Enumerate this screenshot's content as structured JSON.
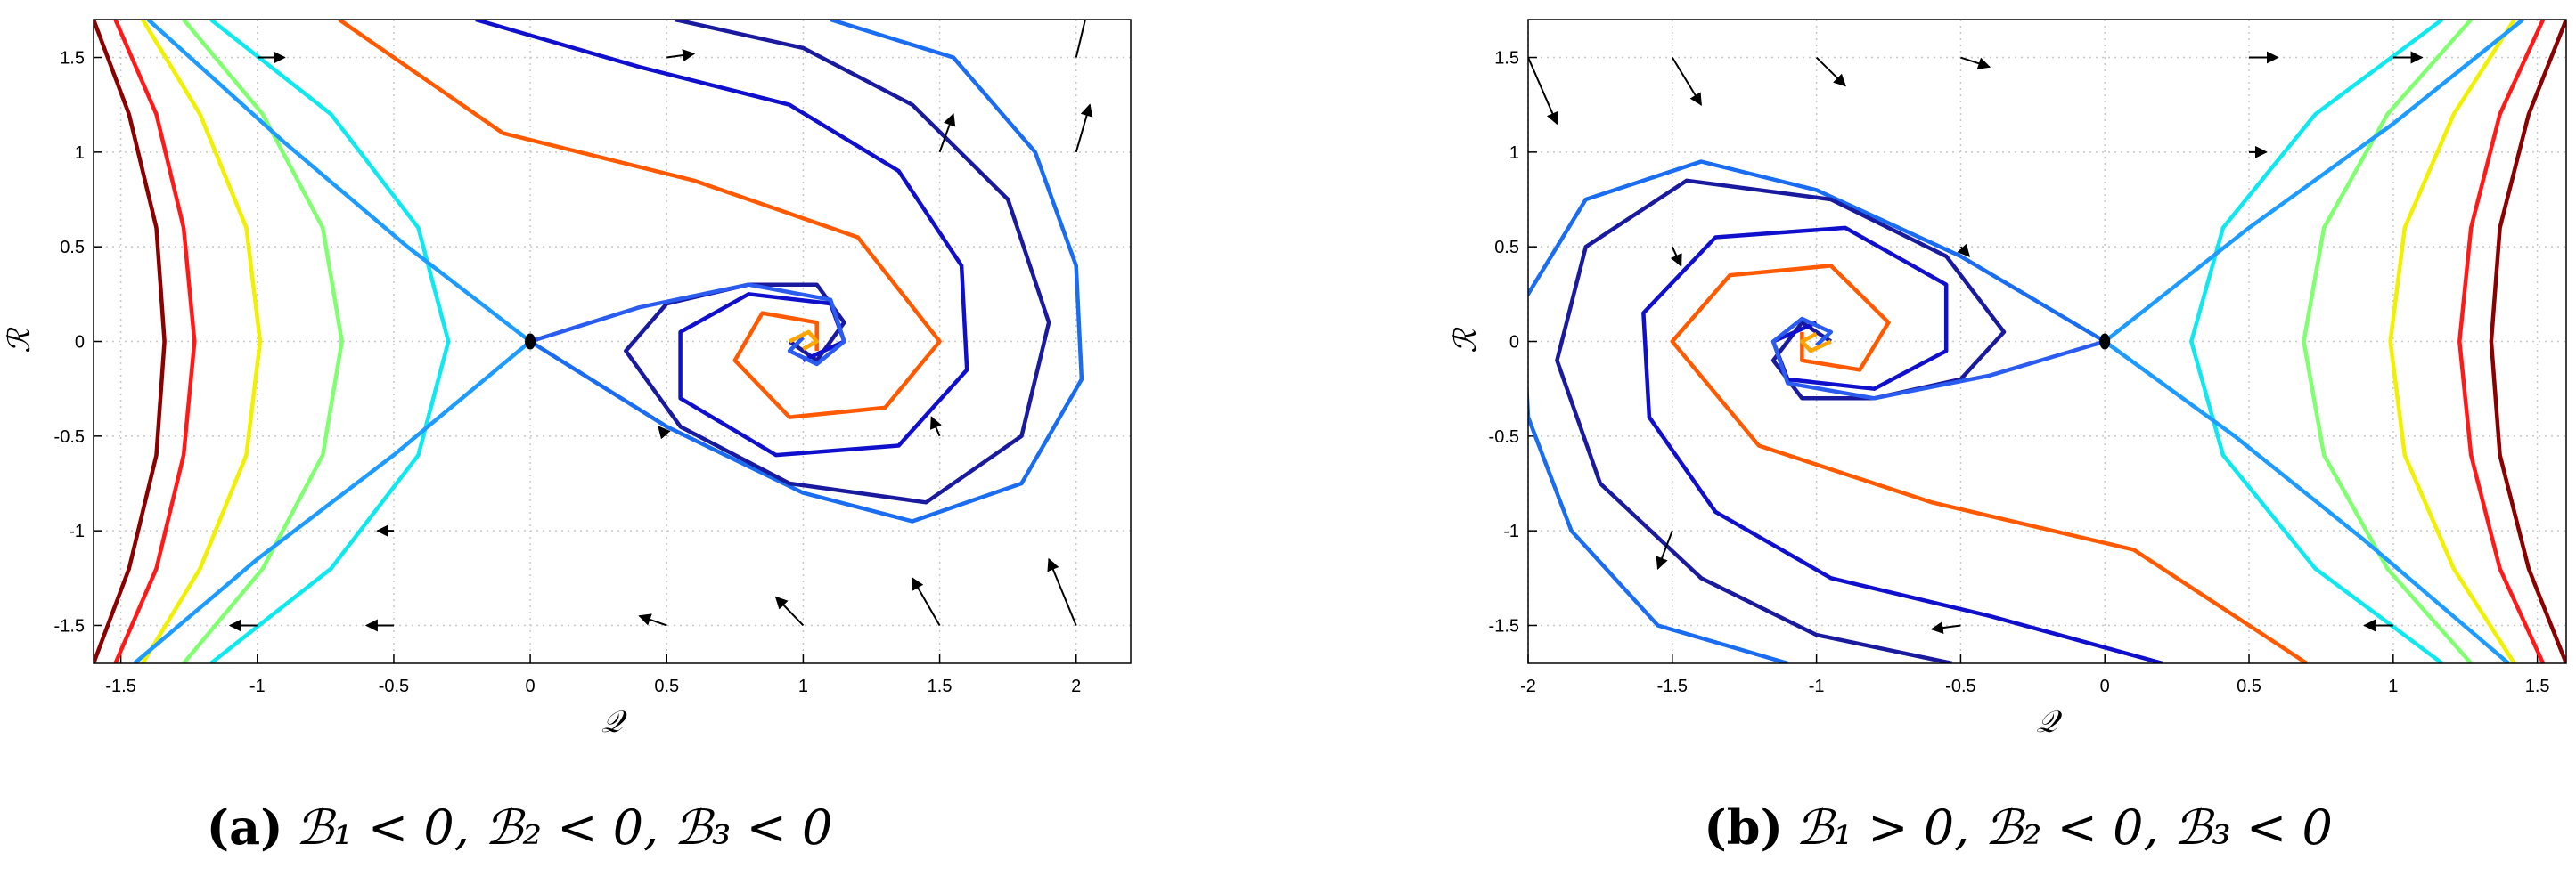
{
  "chart_data": [
    {
      "type": "line",
      "caption_label": "(a)",
      "caption": "ℬ₁ < 0, ℬ₂ < 0, ℬ₃ < 0",
      "xlabel": "𝒬",
      "ylabel": "ℛ",
      "xlim": [
        -1.6,
        2.2
      ],
      "ylim": [
        -1.7,
        1.7
      ],
      "xticks": [
        -1.5,
        -1,
        -0.5,
        0,
        0.5,
        1,
        1.5,
        2
      ],
      "yticks": [
        -1.5,
        -1,
        -0.5,
        0,
        0.5,
        1,
        1.5
      ],
      "grid": true,
      "series": [
        {
          "color": "#8b0000",
          "x": [
            -1.6,
            -1.47,
            -1.37,
            -1.34,
            -1.37,
            -1.47,
            -1.6
          ],
          "values": [
            -1.7,
            -1.2,
            -0.6,
            0,
            0.6,
            1.2,
            1.7
          ]
        },
        {
          "color": "#ff1a1a",
          "x": [
            -1.52,
            -1.37,
            -1.27,
            -1.23,
            -1.27,
            -1.37,
            -1.52
          ],
          "values": [
            -1.7,
            -1.2,
            -0.6,
            0,
            0.6,
            1.2,
            1.7
          ]
        },
        {
          "color": "#f0f000",
          "x": [
            -1.42,
            -1.21,
            -1.04,
            -0.99,
            -1.04,
            -1.21,
            -1.42
          ],
          "values": [
            -1.7,
            -1.2,
            -0.6,
            0,
            0.6,
            1.2,
            1.7
          ]
        },
        {
          "color": "#80ff70",
          "x": [
            -1.27,
            -0.98,
            -0.76,
            -0.69,
            -0.76,
            -0.98,
            -1.27
          ],
          "values": [
            -1.7,
            -1.2,
            -0.6,
            0,
            0.6,
            1.2,
            1.7
          ]
        },
        {
          "color": "#10e8f0",
          "x": [
            -1.17,
            -0.73,
            -0.41,
            -0.3,
            -0.41,
            -0.73,
            -1.17
          ],
          "values": [
            -1.7,
            -1.2,
            -0.6,
            0,
            0.6,
            1.2,
            1.7
          ]
        },
        {
          "color": "#1e9bff",
          "x": [
            -1.4,
            -0.9,
            -0.45,
            0
          ],
          "values": [
            1.7,
            1.05,
            0.5,
            0
          ]
        },
        {
          "color": "#1e9bff",
          "x": [
            0,
            -0.5,
            -1.0,
            -1.45
          ],
          "values": [
            0,
            -0.6,
            -1.15,
            -1.7
          ]
        },
        {
          "color": "#1a6cf0",
          "x": [
            0,
            0.5,
            1.0,
            1.4,
            1.8,
            2.02,
            2.0,
            1.85,
            1.55,
            1.1
          ],
          "values": [
            0,
            -0.45,
            -0.8,
            -0.95,
            -0.75,
            -0.2,
            0.4,
            1.0,
            1.5,
            1.7
          ]
        },
        {
          "color": "#1a1a9e",
          "x": [
            0.53,
            1.0,
            1.4,
            1.75,
            1.9,
            1.8,
            1.45,
            0.95,
            0.55,
            0.35,
            0.5,
            0.8,
            1.05,
            1.15,
            1.05,
            0.95
          ],
          "values": [
            1.7,
            1.55,
            1.25,
            0.75,
            0.1,
            -0.5,
            -0.85,
            -0.75,
            -0.45,
            -0.05,
            0.2,
            0.3,
            0.3,
            0.1,
            -0.1,
            0
          ]
        },
        {
          "color": "#1010cc",
          "x": [
            -0.2,
            0.4,
            0.95,
            1.35,
            1.58,
            1.6,
            1.35,
            0.9,
            0.55,
            0.55,
            0.8,
            1.1,
            1.15,
            1.0
          ],
          "values": [
            1.7,
            1.45,
            1.25,
            0.9,
            0.4,
            -0.15,
            -0.55,
            -0.6,
            -0.3,
            0.05,
            0.25,
            0.2,
            0,
            -0.1
          ]
        },
        {
          "color": "#ff5a00",
          "x": [
            -0.7,
            -0.1,
            0.6,
            1.2,
            1.5,
            1.3,
            0.95,
            0.75,
            0.85,
            1.05,
            1.05
          ],
          "values": [
            1.7,
            1.1,
            0.85,
            0.55,
            0,
            -0.35,
            -0.4,
            -0.1,
            0.15,
            0.1,
            -0.05
          ]
        },
        {
          "color": "#2a5cf0",
          "x": [
            0,
            0.4,
            0.8,
            1.1,
            1.15,
            1.05,
            0.95,
            1.0
          ],
          "values": [
            0,
            0.18,
            0.3,
            0.22,
            0,
            -0.12,
            -0.05,
            0.02
          ]
        },
        {
          "color": "#ffa500",
          "x": [
            0.95,
            1.02,
            1.05,
            1.0
          ],
          "values": [
            0,
            0.05,
            0,
            -0.04
          ]
        }
      ],
      "quiver": {
        "x": [
          2,
          2,
          2,
          1.5,
          1,
          0.5,
          -0.5,
          -1,
          -1,
          0.5,
          1.5,
          1.5,
          0.5,
          -0.5
        ],
        "y": [
          1.5,
          1,
          -1.5,
          -1.5,
          -1.5,
          -1.5,
          -1.5,
          -1.5,
          1.5,
          1.5,
          1,
          -0.5,
          -0.5,
          -1
        ],
        "u": [
          0.05,
          0.05,
          -0.1,
          -0.1,
          -0.1,
          -0.1,
          -0.1,
          -0.1,
          0.1,
          0.1,
          0.05,
          -0.03,
          -0.03,
          -0.06
        ],
        "v": [
          0.3,
          0.25,
          0.35,
          0.25,
          0.15,
          0.05,
          0,
          0,
          0,
          0.02,
          0.2,
          0.1,
          0.05,
          0
        ]
      },
      "equilibria": {
        "x": [
          0
        ],
        "y": [
          0
        ]
      }
    },
    {
      "type": "line",
      "caption_label": "(b)",
      "caption": "ℬ₁ > 0, ℬ₂ < 0, ℬ₃ < 0",
      "xlabel": "𝒬",
      "ylabel": "ℛ",
      "xlim": [
        -2,
        1.6
      ],
      "ylim": [
        -1.7,
        1.7
      ],
      "xticks": [
        -2,
        -1.5,
        -1,
        -0.5,
        0,
        0.5,
        1,
        1.5
      ],
      "yticks": [
        -1.5,
        -1,
        -0.5,
        0,
        0.5,
        1,
        1.5
      ],
      "grid": true,
      "series": [
        {
          "color": "#8b0000",
          "x": [
            1.6,
            1.47,
            1.37,
            1.34,
            1.37,
            1.47,
            1.6
          ],
          "values": [
            1.7,
            1.2,
            0.6,
            0,
            -0.6,
            -1.2,
            -1.7
          ]
        },
        {
          "color": "#ff1a1a",
          "x": [
            1.52,
            1.37,
            1.27,
            1.23,
            1.27,
            1.37,
            1.52
          ],
          "values": [
            1.7,
            1.2,
            0.6,
            0,
            -0.6,
            -1.2,
            -1.7
          ]
        },
        {
          "color": "#f0f000",
          "x": [
            1.42,
            1.21,
            1.04,
            0.99,
            1.04,
            1.21,
            1.42
          ],
          "values": [
            1.7,
            1.2,
            0.6,
            0,
            -0.6,
            -1.2,
            -1.7
          ]
        },
        {
          "color": "#80ff70",
          "x": [
            1.27,
            0.98,
            0.76,
            0.69,
            0.76,
            0.98,
            1.27
          ],
          "values": [
            1.7,
            1.2,
            0.6,
            0,
            -0.6,
            -1.2,
            -1.7
          ]
        },
        {
          "color": "#10e8f0",
          "x": [
            1.17,
            0.73,
            0.41,
            0.3,
            0.41,
            0.73,
            1.17
          ],
          "values": [
            1.7,
            1.2,
            0.6,
            0,
            -0.6,
            -1.2,
            -1.7
          ]
        },
        {
          "color": "#1e9bff",
          "x": [
            1.4,
            0.9,
            0.45,
            0
          ],
          "values": [
            -1.7,
            -1.05,
            -0.5,
            0
          ]
        },
        {
          "color": "#1e9bff",
          "x": [
            0,
            0.5,
            1.0,
            1.45
          ],
          "values": [
            0,
            0.6,
            1.15,
            1.7
          ]
        },
        {
          "color": "#1a6cf0",
          "x": [
            0,
            -0.5,
            -1.0,
            -1.4,
            -1.8,
            -2.02,
            -2.0,
            -1.85,
            -1.55,
            -1.1
          ],
          "values": [
            0,
            0.45,
            0.8,
            0.95,
            0.75,
            0.2,
            -0.4,
            -1.0,
            -1.5,
            -1.7
          ]
        },
        {
          "color": "#1a1a9e",
          "x": [
            -0.53,
            -1.0,
            -1.4,
            -1.75,
            -1.9,
            -1.8,
            -1.45,
            -0.95,
            -0.55,
            -0.35,
            -0.5,
            -0.8,
            -1.05,
            -1.15,
            -1.05,
            -0.95
          ],
          "values": [
            -1.7,
            -1.55,
            -1.25,
            -0.75,
            -0.1,
            0.5,
            0.85,
            0.75,
            0.45,
            0.05,
            -0.2,
            -0.3,
            -0.3,
            -0.1,
            0.1,
            0
          ]
        },
        {
          "color": "#1010cc",
          "x": [
            0.2,
            -0.4,
            -0.95,
            -1.35,
            -1.58,
            -1.6,
            -1.35,
            -0.9,
            -0.55,
            -0.55,
            -0.8,
            -1.1,
            -1.15,
            -1.0
          ],
          "values": [
            -1.7,
            -1.45,
            -1.25,
            -0.9,
            -0.4,
            0.15,
            0.55,
            0.6,
            0.3,
            -0.05,
            -0.25,
            -0.2,
            0,
            0.1
          ]
        },
        {
          "color": "#ff5a00",
          "x": [
            0.7,
            0.1,
            -0.6,
            -1.2,
            -1.5,
            -1.3,
            -0.95,
            -0.75,
            -0.85,
            -1.05,
            -1.05
          ],
          "values": [
            -1.7,
            -1.1,
            -0.85,
            -0.55,
            0,
            0.35,
            0.4,
            0.1,
            -0.15,
            -0.1,
            0.05
          ]
        },
        {
          "color": "#2a5cf0",
          "x": [
            0,
            -0.4,
            -0.8,
            -1.1,
            -1.15,
            -1.05,
            -0.95,
            -1.0
          ],
          "values": [
            0,
            -0.18,
            -0.3,
            -0.22,
            0,
            0.12,
            0.05,
            -0.02
          ]
        },
        {
          "color": "#ffa500",
          "x": [
            -0.95,
            -1.02,
            -1.05,
            -1.0
          ],
          "values": [
            0,
            -0.05,
            0,
            0.04
          ]
        }
      ],
      "quiver": {
        "x": [
          -2,
          -2,
          -2,
          -1.5,
          -1,
          -0.5,
          0.5,
          1,
          1,
          -0.5,
          -1.5,
          -1.5,
          -0.5,
          0.5
        ],
        "y": [
          -1.5,
          -1,
          1.5,
          1.5,
          1.5,
          1.5,
          1.5,
          1.5,
          -1.5,
          -1.5,
          -1,
          0.5,
          0.5,
          1
        ],
        "u": [
          -0.05,
          -0.05,
          0.1,
          0.1,
          0.1,
          0.1,
          0.1,
          0.1,
          -0.1,
          -0.1,
          -0.05,
          0.03,
          0.03,
          0.06
        ],
        "v": [
          -0.3,
          -0.25,
          -0.35,
          -0.25,
          -0.15,
          -0.05,
          0,
          0,
          0,
          -0.02,
          -0.2,
          -0.1,
          -0.05,
          0
        ]
      },
      "equilibria": {
        "x": [
          0
        ],
        "y": [
          0
        ]
      }
    }
  ]
}
